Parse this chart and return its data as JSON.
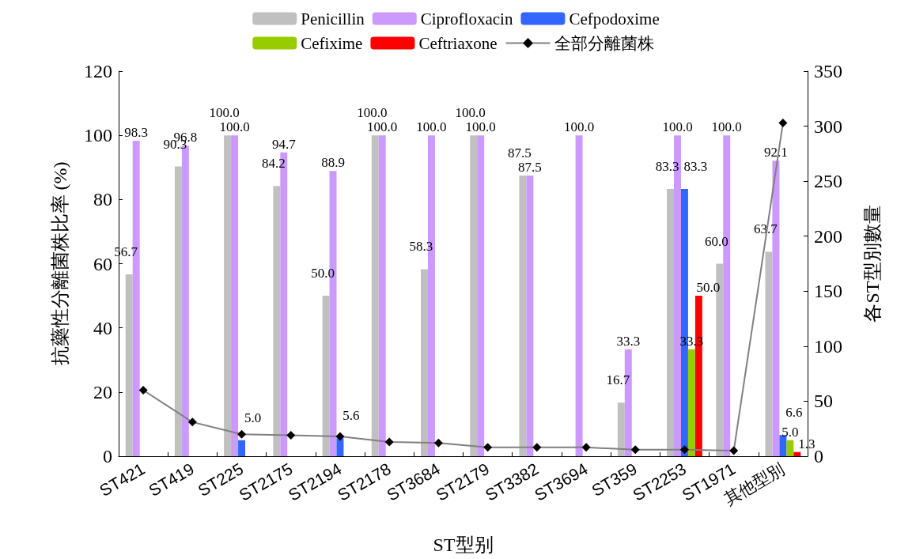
{
  "chart_data": {
    "type": "bar",
    "xlabel": "ST型别",
    "ylabel": "抗藥性分離菌株比率 (%)",
    "y2label": "各ST型別數量",
    "categories": [
      "ST421",
      "ST419",
      "ST225",
      "ST2175",
      "ST2194",
      "ST2178",
      "ST3684",
      "ST2179",
      "ST3382",
      "ST3694",
      "ST359",
      "ST2253",
      "ST1971",
      "其他型別"
    ],
    "series": [
      {
        "name": "Penicillin",
        "color": "#c0c0c0",
        "values": [
          56.7,
          90.3,
          100.0,
          84.2,
          50.0,
          100.0,
          58.3,
          100.0,
          87.5,
          0,
          16.7,
          83.3,
          60.0,
          63.7
        ],
        "value_labels": [
          "56.7",
          "90.3",
          "100.0",
          "84.2",
          "50.0",
          "100.0",
          "58.3",
          "100.0",
          "87.5",
          null,
          "16.7",
          "83.3",
          "60.0",
          "63.7"
        ]
      },
      {
        "name": "Ciprofloxacin",
        "color": "#cc99ff",
        "values": [
          98.3,
          96.8,
          100.0,
          94.7,
          88.9,
          100.0,
          100.0,
          100.0,
          87.5,
          100.0,
          33.3,
          100.0,
          100.0,
          92.1
        ],
        "value_labels": [
          "98.3",
          "96.8",
          "100.0",
          "94.7",
          "88.9",
          "100.0",
          "100.0",
          "100.0",
          "87.5",
          "100.0",
          "33.3",
          "100.0",
          "100.0",
          "92.1"
        ]
      },
      {
        "name": "Cefpodoxime",
        "color": "#3366ff",
        "values": [
          0,
          0,
          5.0,
          0,
          5.6,
          0,
          0,
          0,
          0,
          0,
          0,
          83.3,
          0,
          6.6
        ],
        "value_labels": [
          null,
          null,
          "5.0",
          null,
          "5.6",
          null,
          null,
          null,
          null,
          null,
          null,
          "83.3",
          null,
          "6.6"
        ]
      },
      {
        "name": "Cefixime",
        "color": "#99cc00",
        "values": [
          0,
          0,
          0,
          0,
          0,
          0,
          0,
          0,
          0,
          0,
          0,
          33.3,
          0,
          5.0
        ],
        "value_labels": [
          null,
          null,
          null,
          null,
          null,
          null,
          null,
          null,
          null,
          null,
          null,
          "33.3",
          null,
          "5.0"
        ]
      },
      {
        "name": "Ceftriaxone",
        "color": "#ff0000",
        "values": [
          0,
          0,
          0,
          0,
          0,
          0,
          0,
          0,
          0,
          0,
          0,
          50.0,
          0,
          1.3
        ],
        "value_labels": [
          null,
          null,
          null,
          null,
          null,
          null,
          null,
          null,
          null,
          null,
          null,
          "50.0",
          null,
          "1.3"
        ]
      },
      {
        "name": "全部分離菌株",
        "type": "line",
        "axis": "y2",
        "color": "#808080",
        "values": [
          60,
          31,
          20,
          19,
          18,
          13,
          12,
          8,
          8,
          8,
          6,
          6,
          5,
          303
        ]
      }
    ],
    "ylim": [
      0,
      120
    ],
    "yticks": [
      0,
      20,
      40,
      60,
      80,
      100,
      120
    ],
    "y2lim": [
      0,
      350
    ],
    "y2ticks": [
      0,
      50,
      100,
      150,
      200,
      250,
      300,
      350
    ],
    "grid": false,
    "legend": "top",
    "marker": "diamond",
    "line_style": "solid"
  }
}
